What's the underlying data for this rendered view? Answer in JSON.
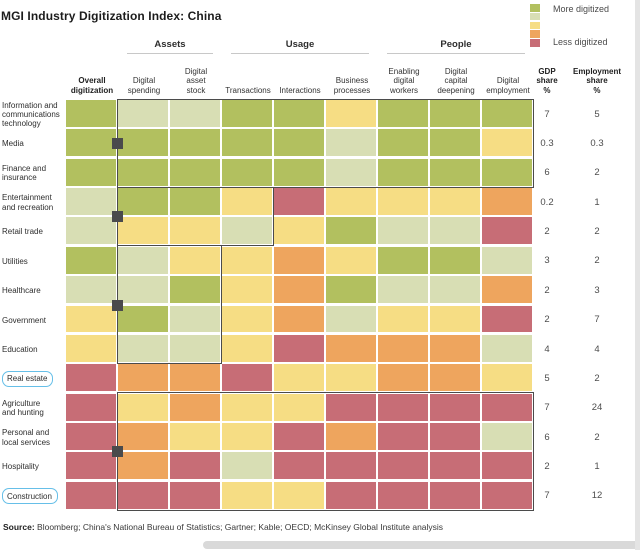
{
  "title": "MGI Industry Digitization Index: China",
  "legend": {
    "more_label": "More digitized",
    "less_label": "Less digitized",
    "colors": [
      "#b2c05f",
      "#d8deb4",
      "#f6dd84",
      "#eea55e",
      "#c76d76"
    ]
  },
  "source": {
    "prefix": "Source:",
    "text": "Bloomberg; China's National Bureau of Statistics; Gartner; Kable; OECD;  McKinsey Global Institute analysis"
  },
  "chart_data": {
    "type": "heatmap",
    "title": "MGI Industry Digitization Index: China",
    "legend": {
      "top": "More digitized",
      "bottom": "Less digitized"
    },
    "scale_note": "5 = more digitized, 1 = less digitized",
    "color_scale": {
      "5": "#b2c05f",
      "4": "#d8deb4",
      "3": "#f6dd84",
      "2": "#eea55e",
      "1": "#c76d76"
    },
    "column_groups": [
      {
        "label": "Assets",
        "cols": [
          1,
          2
        ]
      },
      {
        "label": "Usage",
        "cols": [
          3,
          5
        ]
      },
      {
        "label": "People",
        "cols": [
          6,
          8
        ]
      }
    ],
    "columns": [
      "Overall\ndigitization",
      "Digital\nspending",
      "Digital\nasset\nstock",
      "Transactions",
      "Interactions",
      "Business\nprocesses",
      "Enabling\ndigital\nworkers",
      "Digital\ncapital\ndeepening",
      "Digital\nemployment"
    ],
    "value_columns": [
      {
        "label": "GDP\nshare\n%",
        "key": "gdp"
      },
      {
        "label": "Employment\nshare\n%",
        "key": "emp"
      }
    ],
    "rows": [
      {
        "industry": "Information and\ncommunications\ntechnology",
        "values": [
          5,
          4,
          4,
          5,
          5,
          3,
          5,
          5,
          5
        ],
        "gdp": "7",
        "emp": "5",
        "highlighted": false
      },
      {
        "industry": "Media",
        "values": [
          5,
          5,
          5,
          5,
          5,
          4,
          5,
          5,
          3
        ],
        "gdp": "0.3",
        "emp": "0.3",
        "highlighted": false
      },
      {
        "industry": "Finance and\ninsurance",
        "values": [
          5,
          5,
          5,
          5,
          5,
          4,
          5,
          5,
          5
        ],
        "gdp": "6",
        "emp": "2",
        "highlighted": false
      },
      {
        "industry": "Entertainment\nand recreation",
        "values": [
          4,
          5,
          5,
          3,
          1,
          3,
          3,
          3,
          2
        ],
        "gdp": "0.2",
        "emp": "1",
        "highlighted": false
      },
      {
        "industry": "Retail trade",
        "values": [
          4,
          3,
          3,
          4,
          3,
          5,
          4,
          4,
          1
        ],
        "gdp": "2",
        "emp": "2",
        "highlighted": false
      },
      {
        "industry": "Utilities",
        "values": [
          5,
          4,
          3,
          3,
          2,
          3,
          5,
          5,
          4
        ],
        "gdp": "3",
        "emp": "2",
        "highlighted": false
      },
      {
        "industry": "Healthcare",
        "values": [
          4,
          4,
          5,
          3,
          2,
          5,
          4,
          4,
          2
        ],
        "gdp": "2",
        "emp": "3",
        "highlighted": false
      },
      {
        "industry": "Government",
        "values": [
          3,
          5,
          4,
          3,
          2,
          4,
          3,
          3,
          1
        ],
        "gdp": "2",
        "emp": "7",
        "highlighted": false
      },
      {
        "industry": "Education",
        "values": [
          3,
          4,
          4,
          3,
          1,
          2,
          2,
          2,
          4
        ],
        "gdp": "4",
        "emp": "4",
        "highlighted": false
      },
      {
        "industry": "Real estate",
        "values": [
          1,
          2,
          2,
          1,
          3,
          3,
          2,
          2,
          3
        ],
        "gdp": "5",
        "emp": "2",
        "highlighted": true
      },
      {
        "industry": "Agriculture\nand hunting",
        "values": [
          1,
          3,
          2,
          3,
          3,
          1,
          1,
          1,
          1
        ],
        "gdp": "7",
        "emp": "24",
        "highlighted": false
      },
      {
        "industry": "Personal and\nlocal services",
        "values": [
          1,
          2,
          3,
          3,
          1,
          2,
          1,
          1,
          4
        ],
        "gdp": "6",
        "emp": "2",
        "highlighted": false
      },
      {
        "industry": "Hospitality",
        "values": [
          1,
          2,
          1,
          4,
          1,
          1,
          1,
          1,
          1
        ],
        "gdp": "2",
        "emp": "1",
        "highlighted": false
      },
      {
        "industry": "Construction",
        "values": [
          1,
          1,
          1,
          3,
          3,
          1,
          1,
          1,
          1
        ],
        "gdp": "7",
        "emp": "12",
        "highlighted": true
      }
    ],
    "outlined_groups": [
      {
        "rows": [
          0,
          2
        ],
        "cols": [
          1,
          8
        ]
      },
      {
        "rows": [
          3,
          4
        ],
        "cols": [
          1,
          3
        ]
      },
      {
        "rows": [
          5,
          8
        ],
        "cols": [
          1,
          2
        ]
      },
      {
        "rows": [
          10,
          13
        ],
        "cols": [
          1,
          8
        ]
      }
    ]
  }
}
